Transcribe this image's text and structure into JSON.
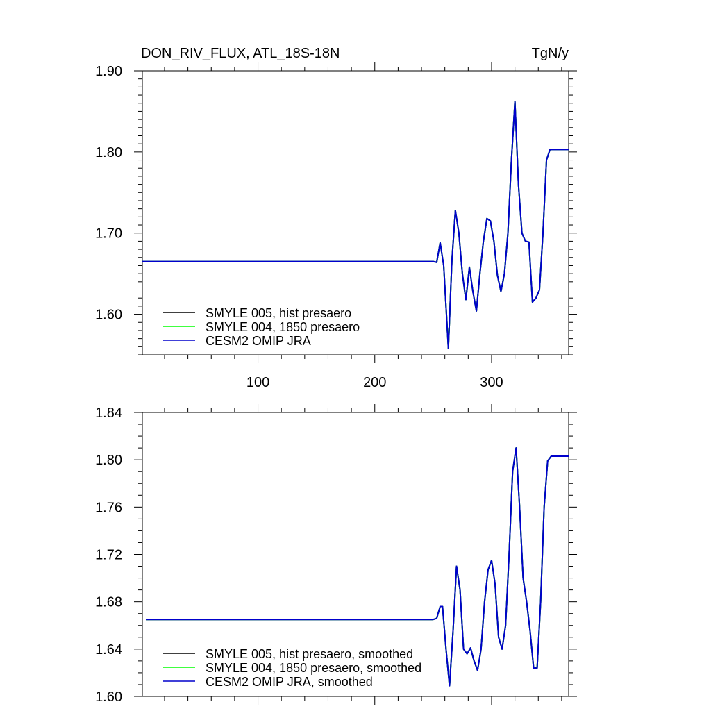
{
  "header": {
    "left_title": "DON_RIV_FLUX, ATL_18S-18N",
    "right_title": "TgN/y"
  },
  "chart_data": [
    {
      "type": "line",
      "xlim": [
        1,
        366
      ],
      "ylim": [
        1.55,
        1.9
      ],
      "x_ticks": [
        100,
        200,
        300
      ],
      "x_tick_labels": [
        "100",
        "200",
        "300"
      ],
      "y_ticks": [
        1.6,
        1.7,
        1.8,
        1.9
      ],
      "y_tick_labels": [
        "1.60",
        "1.70",
        "1.80",
        "1.90"
      ],
      "legend_position": "bottom-left",
      "x": [
        1,
        250,
        253,
        256,
        259,
        263,
        266,
        269,
        272,
        275,
        278,
        281,
        284,
        287,
        290,
        293,
        296,
        299,
        302,
        305,
        308,
        311,
        314,
        317,
        320,
        323,
        326,
        329,
        332,
        335,
        338,
        341,
        344,
        347,
        350,
        366
      ],
      "series": [
        {
          "name": "SMYLE 005, hist presaero",
          "color": "#000000",
          "values": [
            1.665,
            1.665,
            1.664,
            1.688,
            1.66,
            1.558,
            1.665,
            1.728,
            1.7,
            1.65,
            1.618,
            1.658,
            1.628,
            1.604,
            1.65,
            1.69,
            1.718,
            1.715,
            1.69,
            1.648,
            1.628,
            1.65,
            1.7,
            1.79,
            1.862,
            1.76,
            1.7,
            1.69,
            1.689,
            1.615,
            1.62,
            1.63,
            1.7,
            1.79,
            1.803,
            1.803
          ]
        },
        {
          "name": "SMYLE 004, 1850 presaero",
          "color": "#00ff00",
          "values": [
            1.665,
            1.665,
            1.664,
            1.688,
            1.66,
            1.558,
            1.665,
            1.728,
            1.7,
            1.65,
            1.618,
            1.658,
            1.628,
            1.604,
            1.65,
            1.69,
            1.718,
            1.715,
            1.69,
            1.648,
            1.628,
            1.65,
            1.7,
            1.79,
            1.862,
            1.76,
            1.7,
            1.69,
            1.689,
            1.615,
            1.62,
            1.63,
            1.7,
            1.79,
            1.803,
            1.803
          ]
        },
        {
          "name": "CESM2 OMIP JRA",
          "color": "#0000cc",
          "values": [
            1.665,
            1.665,
            1.664,
            1.688,
            1.66,
            1.558,
            1.665,
            1.728,
            1.7,
            1.65,
            1.618,
            1.658,
            1.628,
            1.604,
            1.65,
            1.69,
            1.718,
            1.715,
            1.69,
            1.648,
            1.628,
            1.65,
            1.7,
            1.79,
            1.862,
            1.76,
            1.7,
            1.69,
            1.689,
            1.615,
            1.62,
            1.63,
            1.7,
            1.79,
            1.803,
            1.803
          ]
        }
      ]
    },
    {
      "type": "line",
      "xlim": [
        1,
        366
      ],
      "ylim": [
        1.6,
        1.84
      ],
      "x_ticks": [
        100,
        200,
        300
      ],
      "x_tick_labels": [],
      "y_ticks": [
        1.6,
        1.64,
        1.68,
        1.72,
        1.76,
        1.8,
        1.84
      ],
      "y_tick_labels": [
        "1.60",
        "1.64",
        "1.68",
        "1.72",
        "1.76",
        "1.80",
        "1.84"
      ],
      "legend_position": "bottom-left",
      "x": [
        4,
        250,
        253,
        256,
        258,
        261,
        264,
        267,
        270,
        273,
        276,
        279,
        282,
        285,
        288,
        291,
        294,
        297,
        300,
        303,
        306,
        309,
        312,
        315,
        318,
        321,
        324,
        327,
        330,
        333,
        336,
        339,
        342,
        345,
        348,
        351,
        366
      ],
      "series": [
        {
          "name": "SMYLE 005, hist presaero, smoothed",
          "color": "#000000",
          "values": [
            1.665,
            1.665,
            1.666,
            1.676,
            1.676,
            1.64,
            1.609,
            1.655,
            1.71,
            1.69,
            1.64,
            1.636,
            1.641,
            1.63,
            1.622,
            1.64,
            1.68,
            1.707,
            1.715,
            1.695,
            1.65,
            1.64,
            1.66,
            1.72,
            1.79,
            1.81,
            1.76,
            1.7,
            1.68,
            1.655,
            1.624,
            1.624,
            1.68,
            1.76,
            1.799,
            1.803,
            1.803
          ]
        },
        {
          "name": "SMYLE 004, 1850 presaero, smoothed",
          "color": "#00ff00",
          "values": [
            1.665,
            1.665,
            1.666,
            1.676,
            1.676,
            1.64,
            1.609,
            1.655,
            1.71,
            1.69,
            1.64,
            1.636,
            1.641,
            1.63,
            1.622,
            1.64,
            1.68,
            1.707,
            1.715,
            1.695,
            1.65,
            1.64,
            1.66,
            1.72,
            1.79,
            1.81,
            1.76,
            1.7,
            1.68,
            1.655,
            1.624,
            1.624,
            1.68,
            1.76,
            1.799,
            1.803,
            1.803
          ]
        },
        {
          "name": "CESM2 OMIP JRA, smoothed",
          "color": "#0000cc",
          "values": [
            1.665,
            1.665,
            1.666,
            1.676,
            1.676,
            1.64,
            1.609,
            1.655,
            1.71,
            1.69,
            1.64,
            1.636,
            1.641,
            1.63,
            1.622,
            1.64,
            1.68,
            1.707,
            1.715,
            1.695,
            1.65,
            1.64,
            1.66,
            1.72,
            1.79,
            1.81,
            1.76,
            1.7,
            1.68,
            1.655,
            1.624,
            1.624,
            1.68,
            1.76,
            1.799,
            1.803,
            1.803
          ]
        }
      ]
    }
  ]
}
